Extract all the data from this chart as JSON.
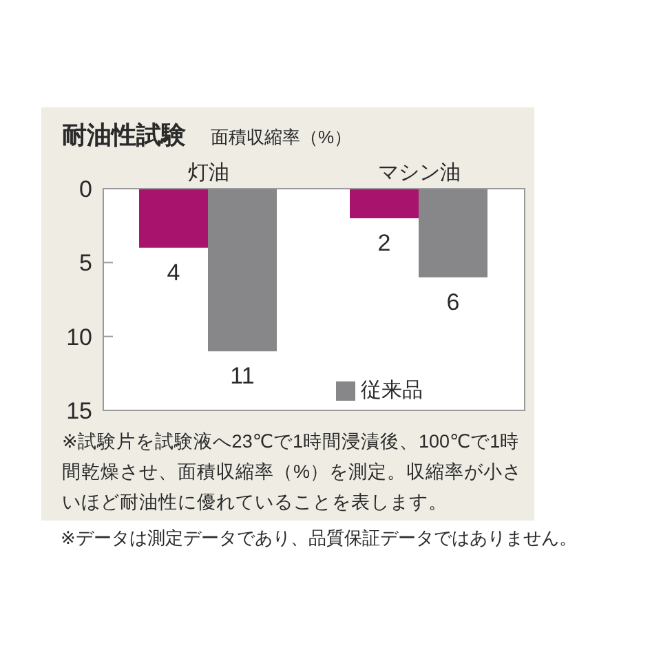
{
  "chart_data": {
    "type": "bar",
    "title": "耐油性試験",
    "subtitle": "面積収縮率（%）",
    "categories": [
      "灯油",
      "マシン油"
    ],
    "series": [
      {
        "color": "#a8136e",
        "values": [
          4,
          2
        ]
      },
      {
        "name": "従来品",
        "color": "#87878a",
        "values": [
          11,
          6
        ]
      }
    ],
    "ylim": [
      15,
      0
    ],
    "yticks": [
      0,
      5,
      10,
      15
    ],
    "grid": false,
    "legend": "bottom right",
    "data_labels": true,
    "annotations": [
      "※試験片を試験液へ23℃で1時間浸漬後、100℃で1時間乾燥させ、面積収縮率（%）を測定。収縮率が小さいほど耐油性に優れていることを表します。",
      "※データは測定データであり、品質保証データではありません。"
    ]
  }
}
